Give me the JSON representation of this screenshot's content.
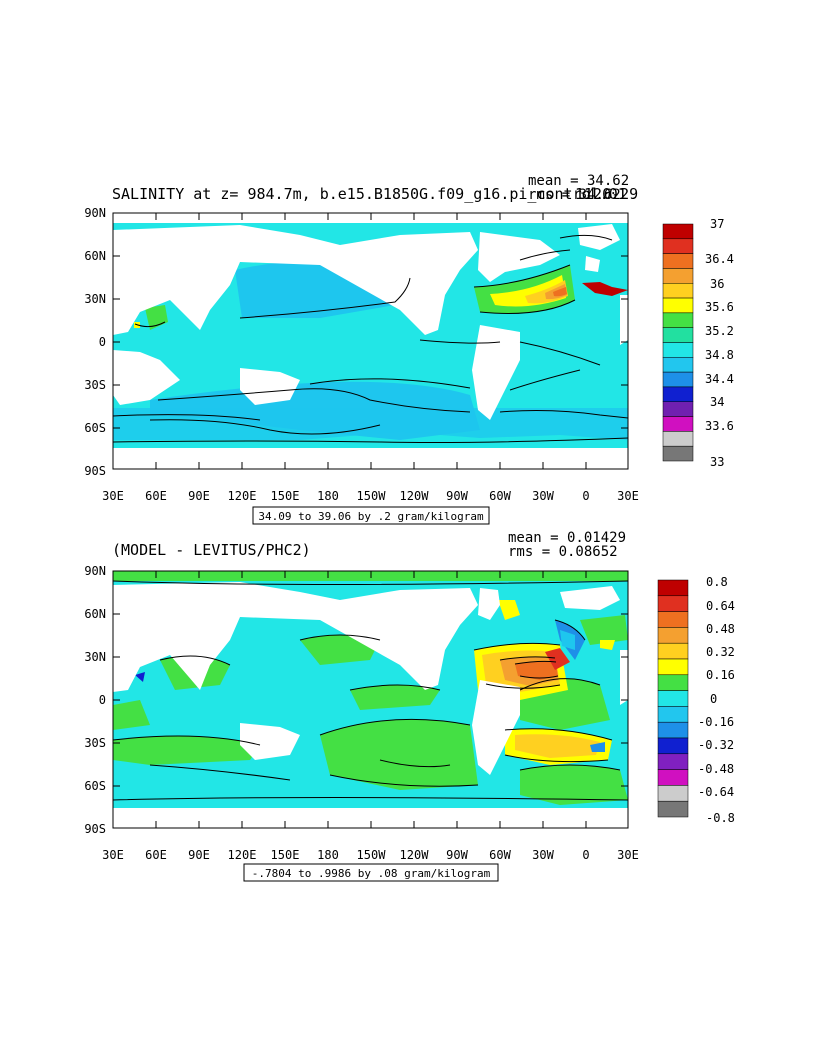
{
  "top": {
    "title": "SALINITY at z= 984.7m, b.e15.B1850G.f09_g16.pi_control.01",
    "years": "1120-29",
    "mean": "mean = 34.62",
    "rms": "rms = 34.62",
    "range_caption": "34.09 to 39.06 by .2 gram/kilogram",
    "colorbar_labels": [
      "37",
      "36.4",
      "36",
      "35.6",
      "35.2",
      "34.8",
      "34.4",
      "34",
      "33.6",
      "33"
    ],
    "colorbar_colors": [
      "#bf0000",
      "#e03020",
      "#ee7020",
      "#f4a030",
      "#ffd020",
      "#ffff00",
      "#44e044",
      "#22e0a0",
      "#22e6e6",
      "#22c6ee",
      "#1e90e8",
      "#1020d0",
      "#7020b0",
      "#d010c0",
      "#cccccc",
      "#777777"
    ]
  },
  "bottom": {
    "title": "(MODEL - LEVITUS/PHC2)",
    "mean": "mean = 0.01429",
    "rms": "rms = 0.08652",
    "range_caption": "-.7804 to .9986 by .08 gram/kilogram",
    "colorbar_labels": [
      "0.8",
      "0.64",
      "0.48",
      "0.32",
      "0.16",
      "0",
      "-0.16",
      "-0.32",
      "-0.48",
      "-0.64",
      "-0.8"
    ],
    "colorbar_colors": [
      "#bf0000",
      "#e03020",
      "#ee7020",
      "#f4a030",
      "#ffd020",
      "#ffff00",
      "#44e044",
      "#22e6e6",
      "#22c6ee",
      "#1e90e8",
      "#1020d0",
      "#8020c0",
      "#d010c0",
      "#cccccc",
      "#777777"
    ]
  },
  "axes": {
    "lat_labels": [
      "90N",
      "60N",
      "30N",
      "0",
      "30S",
      "60S",
      "90S"
    ],
    "lon_labels": [
      "30E",
      "60E",
      "90E",
      "120E",
      "150E",
      "180",
      "150W",
      "120W",
      "90W",
      "60W",
      "30W",
      "0",
      "30E"
    ]
  },
  "colors": {
    "land": "#ffffff",
    "top_dominant": "#22e6e6",
    "bottom_dominant": "#44e044"
  }
}
